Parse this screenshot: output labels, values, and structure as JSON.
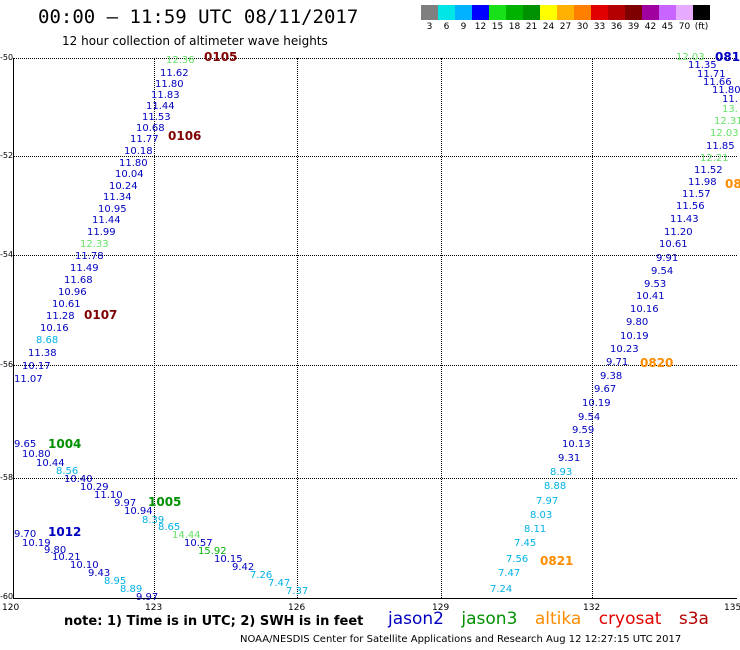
{
  "title": "00:00 – 11:59 UTC 08/11/2017",
  "subtitle": "12 hour collection of altimeter wave heights",
  "legend": {
    "colors": [
      "#7f7f7f",
      "#00e5e5",
      "#00b2ff",
      "#0000ff",
      "#19e119",
      "#00b200",
      "#009100",
      "#ffff00",
      "#ffb000",
      "#ff7f00",
      "#e10000",
      "#b40000",
      "#7f0000",
      "#a000a0",
      "#c864ff",
      "#e6aaff",
      "#000000"
    ],
    "labels": [
      "3",
      "6",
      "9",
      "12",
      "15",
      "18",
      "21",
      "24",
      "27",
      "30",
      "33",
      "36",
      "39",
      "42",
      "45",
      "70",
      "(ft)"
    ]
  },
  "y_ticks": [
    "-50",
    "-52",
    "-54",
    "-56",
    "-58",
    "-60"
  ],
  "x_ticks": [
    "120",
    "123",
    "126",
    "129",
    "132",
    "135"
  ],
  "obs": [
    [
      "12.36",
      166,
      56,
      "#66e066"
    ],
    [
      "11.62",
      160,
      69,
      "#0000c0"
    ],
    [
      "11.80",
      155,
      80,
      "#0000c0"
    ],
    [
      "11.83",
      151,
      91,
      "#0000c0"
    ],
    [
      "11.44",
      146,
      102,
      "#0000c0"
    ],
    [
      "11.53",
      142,
      113,
      "#0000c0"
    ],
    [
      "10.68",
      136,
      124,
      "#0000c0"
    ],
    [
      "11.77",
      130,
      135,
      "#0000c0"
    ],
    [
      "10.18",
      124,
      147,
      "#0000c0"
    ],
    [
      "11.80",
      119,
      159,
      "#0000c0"
    ],
    [
      "10.04",
      115,
      170,
      "#0000c0"
    ],
    [
      "10.24",
      109,
      182,
      "#0000c0"
    ],
    [
      "11.34",
      103,
      193,
      "#0000c0"
    ],
    [
      "10.95",
      98,
      205,
      "#0000c0"
    ],
    [
      "11.44",
      92,
      216,
      "#0000c0"
    ],
    [
      "11.99",
      87,
      228,
      "#0000c0"
    ],
    [
      "12.33",
      80,
      240,
      "#66e066"
    ],
    [
      "11.78",
      75,
      252,
      "#0000c0"
    ],
    [
      "11.49",
      70,
      264,
      "#0000c0"
    ],
    [
      "11.68",
      64,
      276,
      "#0000c0"
    ],
    [
      "10.96",
      58,
      288,
      "#0000c0"
    ],
    [
      "10.61",
      52,
      300,
      "#0000c0"
    ],
    [
      "11.28",
      46,
      312,
      "#0000c0"
    ],
    [
      "10.16",
      40,
      324,
      "#0000c0"
    ],
    [
      "8.68",
      36,
      336,
      "#00b2e6"
    ],
    [
      "11.38",
      28,
      349,
      "#0000c0"
    ],
    [
      "10.17",
      22,
      362,
      "#0000c0"
    ],
    [
      "11.07",
      14,
      375,
      "#0000c0"
    ],
    [
      "9.65",
      14,
      440,
      "#0000c0"
    ],
    [
      "10.80",
      22,
      450,
      "#0000c0"
    ],
    [
      "10.44",
      36,
      459,
      "#0000c0"
    ],
    [
      "8.56",
      56,
      467,
      "#00b2e6"
    ],
    [
      "10.40",
      64,
      475,
      "#0000c0"
    ],
    [
      "10.29",
      80,
      483,
      "#0000c0"
    ],
    [
      "11.10",
      94,
      491,
      "#0000c0"
    ],
    [
      "9.97",
      114,
      499,
      "#0000c0"
    ],
    [
      "10.94",
      124,
      507,
      "#0000c0"
    ],
    [
      "8.39",
      142,
      516,
      "#00b2e6"
    ],
    [
      "8.65",
      158,
      523,
      "#00b2e6"
    ],
    [
      "14.44",
      172,
      531,
      "#66e066"
    ],
    [
      "10.57",
      184,
      539,
      "#0000c0"
    ],
    [
      "15.92",
      198,
      547,
      "#00b200"
    ],
    [
      "10.15",
      214,
      555,
      "#0000c0"
    ],
    [
      "9.42",
      232,
      563,
      "#0000c0"
    ],
    [
      "7.26",
      250,
      571,
      "#00b2e6"
    ],
    [
      "7.47",
      268,
      579,
      "#00b2e6"
    ],
    [
      "7.37",
      286,
      587,
      "#00b2e6"
    ],
    [
      "9.70",
      14,
      530,
      "#0000c0"
    ],
    [
      "10.19",
      22,
      539,
      "#0000c0"
    ],
    [
      "9.80",
      44,
      546,
      "#0000c0"
    ],
    [
      "10.21",
      52,
      553,
      "#0000c0"
    ],
    [
      "10.10",
      70,
      561,
      "#0000c0"
    ],
    [
      "9.43",
      88,
      569,
      "#0000c0"
    ],
    [
      "8.95",
      104,
      577,
      "#00b2e6"
    ],
    [
      "8.89",
      120,
      585,
      "#00b2e6"
    ],
    [
      "9.97",
      136,
      593,
      "#0000c0"
    ],
    [
      "12.03",
      676,
      53,
      "#66e066"
    ],
    [
      "11.35",
      688,
      61,
      "#0000c0"
    ],
    [
      "11.71",
      697,
      70,
      "#0000c0"
    ],
    [
      "11.66",
      703,
      78,
      "#0000c0"
    ],
    [
      "11.80",
      712,
      86,
      "#0000c0"
    ],
    [
      "11.",
      722,
      95,
      "#0000c0"
    ],
    [
      "13.",
      722,
      105,
      "#66e066"
    ],
    [
      "12.31",
      714,
      117,
      "#66e066"
    ],
    [
      "12.03",
      710,
      129,
      "#66e066"
    ],
    [
      "11.85",
      706,
      142,
      "#0000c0"
    ],
    [
      "12.21",
      700,
      154,
      "#66e066"
    ],
    [
      "11.52",
      694,
      166,
      "#0000c0"
    ],
    [
      "11.98",
      688,
      178,
      "#0000c0"
    ],
    [
      "11.57",
      682,
      190,
      "#0000c0"
    ],
    [
      "11.56",
      676,
      202,
      "#0000c0"
    ],
    [
      "11.43",
      670,
      215,
      "#0000c0"
    ],
    [
      "11.20",
      664,
      228,
      "#0000c0"
    ],
    [
      "10.61",
      659,
      240,
      "#0000c0"
    ],
    [
      "9.91",
      656,
      254,
      "#0000c0"
    ],
    [
      "9.54",
      651,
      267,
      "#0000c0"
    ],
    [
      "9.53",
      644,
      280,
      "#0000c0"
    ],
    [
      "10.41",
      636,
      292,
      "#0000c0"
    ],
    [
      "10.16",
      630,
      305,
      "#0000c0"
    ],
    [
      "9.80",
      626,
      318,
      "#0000c0"
    ],
    [
      "10.19",
      620,
      332,
      "#0000c0"
    ],
    [
      "10.23",
      610,
      345,
      "#0000c0"
    ],
    [
      "9.71",
      606,
      358,
      "#0000c0"
    ],
    [
      "9.38",
      600,
      372,
      "#0000c0"
    ],
    [
      "9.67",
      594,
      385,
      "#0000c0"
    ],
    [
      "10.19",
      582,
      399,
      "#0000c0"
    ],
    [
      "9.54",
      578,
      413,
      "#0000c0"
    ],
    [
      "9.59",
      572,
      426,
      "#0000c0"
    ],
    [
      "10.13",
      562,
      440,
      "#0000c0"
    ],
    [
      "9.31",
      558,
      454,
      "#0000c0"
    ],
    [
      "8.93",
      550,
      468,
      "#00b2e6"
    ],
    [
      "8.88",
      544,
      482,
      "#00b2e6"
    ],
    [
      "7.97",
      536,
      497,
      "#00b2e6"
    ],
    [
      "8.03",
      530,
      511,
      "#00b2e6"
    ],
    [
      "8.11",
      524,
      525,
      "#00b2e6"
    ],
    [
      "7.45",
      514,
      539,
      "#00b2e6"
    ],
    [
      "7.56",
      506,
      555,
      "#00b2e6"
    ],
    [
      "7.47",
      498,
      569,
      "#00b2e6"
    ],
    [
      "7.24",
      490,
      585,
      "#00b2e6"
    ]
  ],
  "times": [
    [
      "0105",
      204,
      51,
      "#7f0000"
    ],
    [
      "0106",
      168,
      130,
      "#7f0000"
    ],
    [
      "0107",
      84,
      309,
      "#7f0000"
    ],
    [
      "1004",
      48,
      438,
      "#009100"
    ],
    [
      "1005",
      148,
      496,
      "#009100"
    ],
    [
      "1012",
      48,
      526,
      "#0000c0"
    ],
    [
      "081",
      715,
      51,
      "#0000c0"
    ],
    [
      "08",
      725,
      178,
      "#ff8c00"
    ],
    [
      "0820",
      640,
      357,
      "#ff8c00"
    ],
    [
      "0821",
      540,
      555,
      "#ff8c00"
    ]
  ],
  "note": "note:  1) Time is in UTC;  2) SWH is in feet",
  "satellites": [
    {
      "name": "jason2",
      "color": "#0000c0"
    },
    {
      "name": "jason3",
      "color": "#009100"
    },
    {
      "name": "altika",
      "color": "#ff8c00"
    },
    {
      "name": "cryosat",
      "color": "#e10000"
    },
    {
      "name": "s3a",
      "color": "#b40000"
    }
  ],
  "credit": "NOAA/NESDIS Center for Satellite Applications and Research     Aug 12 12:27:15 UTC 2017"
}
